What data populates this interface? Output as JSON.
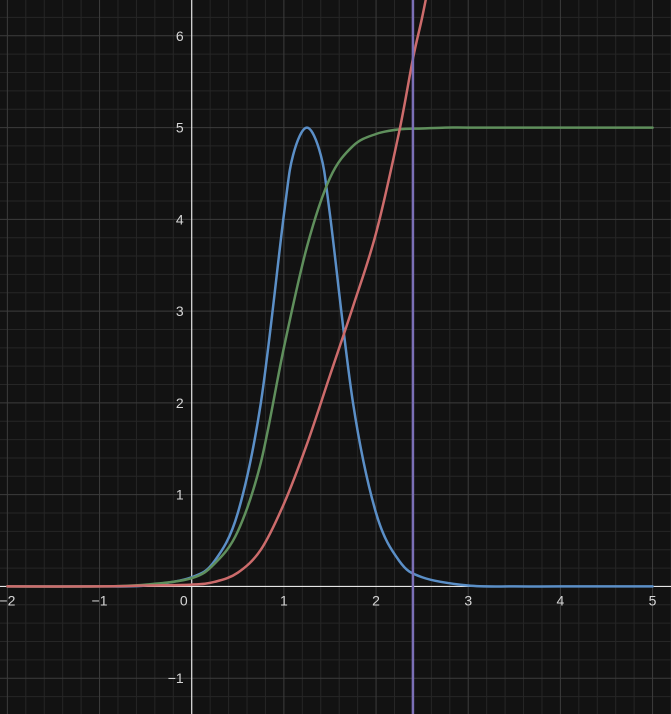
{
  "chart_data": {
    "type": "line",
    "title": "",
    "xlabel": "",
    "ylabel": "",
    "grid": true,
    "xlim": [
      -2.08,
      5.2
    ],
    "ylim": [
      -1.39,
      6.39
    ],
    "x_ticks": [
      -2,
      -1,
      0,
      1,
      2,
      3,
      4,
      5
    ],
    "x_tick_labels": [
      "−2",
      "−1",
      "0",
      "1",
      "2",
      "3",
      "4",
      "5"
    ],
    "y_ticks": [
      -1,
      1,
      2,
      3,
      4,
      5,
      6
    ],
    "y_tick_labels": [
      "−1",
      "1",
      "2",
      "3",
      "4",
      "5",
      "6"
    ],
    "series": [
      {
        "color": "#5b8fc7",
        "kind": "function",
        "x": [
          -2,
          -1,
          -0.5,
          0,
          0.25,
          0.5,
          0.75,
          1,
          1.1,
          1.25,
          1.4,
          1.5,
          1.75,
          2,
          2.25,
          2.5,
          3,
          3.5,
          4,
          5
        ],
        "y": [
          0.0,
          0.0,
          0.01,
          0.1,
          0.28,
          0.8,
          2.0,
          4.05,
          4.7,
          5.0,
          4.7,
          4.05,
          2.0,
          0.8,
          0.28,
          0.1,
          0.01,
          0.0,
          0.0,
          0.0
        ]
      },
      {
        "color": "#5f8f5c",
        "kind": "function",
        "x": [
          -2,
          -1,
          -0.5,
          0,
          0.25,
          0.5,
          0.75,
          1,
          1.25,
          1.5,
          1.75,
          2,
          2.25,
          2.5,
          2.75,
          3,
          3.5,
          4,
          5
        ],
        "y": [
          0.0,
          0.0,
          0.02,
          0.09,
          0.25,
          0.6,
          1.35,
          2.6,
          3.7,
          4.45,
          4.8,
          4.93,
          4.98,
          4.99,
          5.0,
          5.0,
          5.0,
          5.0,
          5.0
        ]
      },
      {
        "color": "#cc6b6b",
        "kind": "function",
        "x": [
          -2,
          -1,
          -0.5,
          0,
          0.25,
          0.5,
          0.75,
          1,
          1.25,
          1.5,
          1.75,
          2,
          2.25,
          2.4,
          2.5,
          2.6
        ],
        "y": [
          0.0,
          0.0,
          0.01,
          0.02,
          0.05,
          0.15,
          0.4,
          0.9,
          1.55,
          2.3,
          3.05,
          3.85,
          4.95,
          5.75,
          6.2,
          6.7
        ]
      },
      {
        "color": "#7b6fb6",
        "kind": "vertical",
        "x": 2.4
      }
    ]
  }
}
